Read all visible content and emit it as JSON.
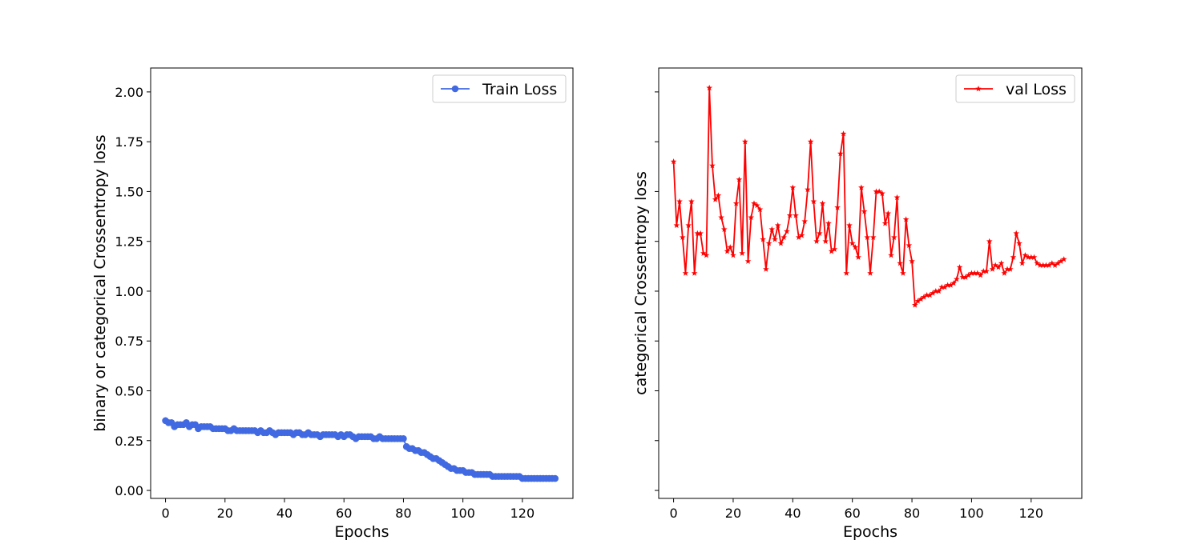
{
  "chart_data": [
    {
      "type": "line",
      "xlabel": "Epochs",
      "ylabel": "binary or categorical  Crossentropy loss",
      "xlim": [
        -5,
        137
      ],
      "ylim": [
        -0.04,
        2.12
      ],
      "xticks": [
        0,
        20,
        40,
        60,
        80,
        100,
        120
      ],
      "yticks": [
        0.0,
        0.25,
        0.5,
        0.75,
        1.0,
        1.25,
        1.5,
        1.75,
        2.0
      ],
      "ytick_labels": [
        "0.00",
        "0.25",
        "0.50",
        "0.75",
        "1.00",
        "1.25",
        "1.50",
        "1.75",
        "2.00"
      ],
      "grid": false,
      "legend": "top-right",
      "series": [
        {
          "name": "Train Loss",
          "color": "#4169e1",
          "marker": "circle",
          "x_start": 0,
          "values": [
            0.35,
            0.34,
            0.34,
            0.32,
            0.33,
            0.33,
            0.33,
            0.34,
            0.32,
            0.33,
            0.33,
            0.31,
            0.32,
            0.32,
            0.32,
            0.32,
            0.31,
            0.31,
            0.31,
            0.31,
            0.31,
            0.3,
            0.3,
            0.31,
            0.3,
            0.3,
            0.3,
            0.3,
            0.3,
            0.3,
            0.3,
            0.29,
            0.3,
            0.29,
            0.29,
            0.3,
            0.29,
            0.28,
            0.29,
            0.29,
            0.29,
            0.29,
            0.29,
            0.28,
            0.29,
            0.29,
            0.28,
            0.28,
            0.29,
            0.28,
            0.28,
            0.28,
            0.27,
            0.28,
            0.28,
            0.28,
            0.28,
            0.28,
            0.27,
            0.28,
            0.27,
            0.28,
            0.28,
            0.27,
            0.26,
            0.27,
            0.27,
            0.27,
            0.27,
            0.27,
            0.26,
            0.26,
            0.27,
            0.26,
            0.26,
            0.26,
            0.26,
            0.26,
            0.26,
            0.26,
            0.26,
            0.22,
            0.21,
            0.21,
            0.2,
            0.2,
            0.19,
            0.19,
            0.18,
            0.17,
            0.16,
            0.16,
            0.15,
            0.14,
            0.13,
            0.12,
            0.11,
            0.11,
            0.1,
            0.1,
            0.1,
            0.09,
            0.09,
            0.09,
            0.08,
            0.08,
            0.08,
            0.08,
            0.08,
            0.08,
            0.07,
            0.07,
            0.07,
            0.07,
            0.07,
            0.07,
            0.07,
            0.07,
            0.07,
            0.07,
            0.06,
            0.06,
            0.06,
            0.06,
            0.06,
            0.06,
            0.06,
            0.06,
            0.06,
            0.06,
            0.06,
            0.06
          ]
        }
      ]
    },
    {
      "type": "line",
      "xlabel": "Epochs",
      "ylabel": "categorical  Crossentropy loss",
      "xlim": [
        -5,
        137
      ],
      "ylim": [
        -0.04,
        2.12
      ],
      "xticks": [
        0,
        20,
        40,
        60,
        80,
        100,
        120
      ],
      "yticks": [
        0.0,
        0.25,
        0.5,
        0.75,
        1.0,
        1.25,
        1.5,
        1.75,
        2.0
      ],
      "ytick_labels": [],
      "grid": false,
      "legend": "top-right",
      "series": [
        {
          "name": "val Loss",
          "color": "#ff0000",
          "marker": "star",
          "x_start": 0,
          "values": [
            1.65,
            1.33,
            1.45,
            1.27,
            1.09,
            1.33,
            1.45,
            1.09,
            1.29,
            1.29,
            1.19,
            1.18,
            2.02,
            1.63,
            1.46,
            1.48,
            1.37,
            1.31,
            1.2,
            1.22,
            1.18,
            1.44,
            1.56,
            1.19,
            1.75,
            1.15,
            1.37,
            1.44,
            1.43,
            1.41,
            1.26,
            1.11,
            1.24,
            1.31,
            1.26,
            1.33,
            1.24,
            1.27,
            1.3,
            1.38,
            1.52,
            1.38,
            1.27,
            1.28,
            1.35,
            1.51,
            1.75,
            1.45,
            1.25,
            1.29,
            1.44,
            1.25,
            1.34,
            1.2,
            1.21,
            1.42,
            1.69,
            1.79,
            1.09,
            1.33,
            1.24,
            1.22,
            1.17,
            1.52,
            1.4,
            1.27,
            1.09,
            1.27,
            1.5,
            1.5,
            1.49,
            1.34,
            1.39,
            1.18,
            1.27,
            1.47,
            1.14,
            1.09,
            1.36,
            1.23,
            1.15,
            0.93,
            0.95,
            0.96,
            0.97,
            0.98,
            0.98,
            0.99,
            1.0,
            1.0,
            1.02,
            1.02,
            1.03,
            1.03,
            1.04,
            1.06,
            1.12,
            1.07,
            1.07,
            1.08,
            1.09,
            1.09,
            1.09,
            1.08,
            1.1,
            1.1,
            1.25,
            1.11,
            1.13,
            1.12,
            1.14,
            1.09,
            1.11,
            1.11,
            1.17,
            1.29,
            1.24,
            1.14,
            1.18,
            1.17,
            1.17,
            1.17,
            1.14,
            1.13,
            1.13,
            1.13,
            1.13,
            1.14,
            1.13,
            1.14,
            1.15,
            1.16
          ]
        }
      ]
    }
  ]
}
